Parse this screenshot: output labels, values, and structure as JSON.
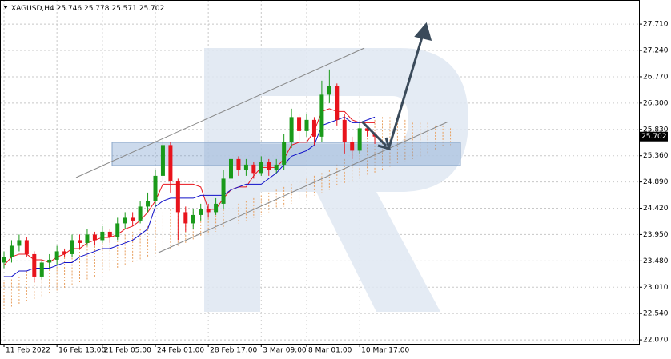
{
  "chart_data": {
    "type": "candlestick",
    "title": "XAGUSD,H4",
    "up_color": "#1a9a1a",
    "down_color": "#e8141c",
    "grid": true,
    "open": [
      23.45,
      23.55,
      23.75,
      23.85,
      23.6,
      23.2,
      23.45,
      23.5,
      23.65,
      23.6,
      23.85,
      23.8,
      23.95,
      23.85,
      24.0,
      23.9,
      24.15,
      24.25,
      24.2,
      24.45,
      24.55,
      25.0,
      25.55,
      24.9,
      24.35,
      24.15,
      24.3,
      24.4,
      24.35,
      24.5,
      24.95,
      25.3,
      25.1,
      25.2,
      25.05,
      25.25,
      25.1,
      25.2,
      25.6,
      26.05,
      25.8,
      26.0,
      25.7,
      26.45,
      26.6,
      26.0,
      25.6,
      25.45,
      25.85,
      25.746
    ],
    "high": [
      23.65,
      23.85,
      23.95,
      23.9,
      23.65,
      23.5,
      23.6,
      23.75,
      23.7,
      23.95,
      23.95,
      24.05,
      24.0,
      24.1,
      24.05,
      24.25,
      24.35,
      24.35,
      24.55,
      24.7,
      25.1,
      25.65,
      25.6,
      24.95,
      24.45,
      24.4,
      24.5,
      24.5,
      24.6,
      25.1,
      25.55,
      25.35,
      25.3,
      25.25,
      25.35,
      25.3,
      25.3,
      25.75,
      26.2,
      26.1,
      26.1,
      26.05,
      26.7,
      26.9,
      26.65,
      26.1,
      25.7,
      25.95,
      25.9,
      25.778
    ],
    "low": [
      23.35,
      23.45,
      23.65,
      23.55,
      23.1,
      23.15,
      23.35,
      23.4,
      23.55,
      23.55,
      23.7,
      23.75,
      23.75,
      23.8,
      23.8,
      23.85,
      24.05,
      24.1,
      24.15,
      24.35,
      24.45,
      24.9,
      24.7,
      23.85,
      24.0,
      24.05,
      24.2,
      24.25,
      24.3,
      24.4,
      24.85,
      25.0,
      25.0,
      24.95,
      25.0,
      25.0,
      25.05,
      25.1,
      25.5,
      25.6,
      25.7,
      25.55,
      25.6,
      26.3,
      25.9,
      25.4,
      25.3,
      25.4,
      25.7,
      25.571
    ],
    "close": [
      23.55,
      23.75,
      23.85,
      23.6,
      23.2,
      23.45,
      23.5,
      23.65,
      23.6,
      23.85,
      23.8,
      23.95,
      23.85,
      24.0,
      23.9,
      24.15,
      24.25,
      24.2,
      24.45,
      24.55,
      25.0,
      25.55,
      24.9,
      24.35,
      24.15,
      24.3,
      24.4,
      24.35,
      24.5,
      24.95,
      25.3,
      25.1,
      25.2,
      25.05,
      25.25,
      25.1,
      25.2,
      25.6,
      26.05,
      25.8,
      26.0,
      25.7,
      26.45,
      26.6,
      26.0,
      25.6,
      25.45,
      25.85,
      25.8,
      25.702
    ],
    "tenkan": {
      "color": "#e8141c",
      "values": [
        23.4,
        23.55,
        23.6,
        23.6,
        23.5,
        23.5,
        23.45,
        23.55,
        23.6,
        23.7,
        23.7,
        23.8,
        23.85,
        23.9,
        23.9,
        23.95,
        24.05,
        24.1,
        24.2,
        24.35,
        24.55,
        24.85,
        24.85,
        24.85,
        24.85,
        24.85,
        24.8,
        24.4,
        24.4,
        24.6,
        24.75,
        24.8,
        24.8,
        25.0,
        25.15,
        25.15,
        25.15,
        25.3,
        25.55,
        25.6,
        25.6,
        25.8,
        26.15,
        26.2,
        26.15,
        26.15,
        26.0,
        25.95,
        25.95,
        25.95
      ]
    },
    "kijun": {
      "color": "#1010c8",
      "values": [
        23.2,
        23.2,
        23.3,
        23.3,
        23.35,
        23.35,
        23.35,
        23.4,
        23.45,
        23.45,
        23.55,
        23.6,
        23.65,
        23.7,
        23.7,
        23.75,
        23.8,
        23.85,
        23.95,
        24.05,
        24.45,
        24.55,
        24.6,
        24.6,
        24.6,
        24.6,
        24.65,
        24.65,
        24.65,
        24.65,
        24.75,
        24.8,
        24.85,
        24.85,
        24.85,
        24.95,
        25.05,
        25.2,
        25.35,
        25.4,
        25.45,
        25.55,
        25.9,
        25.95,
        26.0,
        26.05,
        25.95,
        25.95,
        26.0,
        26.05
      ]
    },
    "cloud": {
      "color": "#e8a060",
      "span_a": [
        23.1,
        23.15,
        23.2,
        23.3,
        23.4,
        23.45,
        23.5,
        23.55,
        23.6,
        23.65,
        23.7,
        23.75,
        23.8,
        23.8,
        23.85,
        23.9,
        23.95,
        24.0,
        24.05,
        24.1,
        24.2,
        24.35,
        24.4,
        24.4,
        24.4,
        24.35,
        24.3,
        24.3,
        24.35,
        24.4,
        24.45,
        24.5,
        24.55,
        24.6,
        24.65,
        24.7,
        24.75,
        24.8,
        24.85,
        24.9,
        24.95,
        25.0,
        25.05,
        25.1,
        25.2,
        25.3,
        25.45,
        25.6,
        25.85,
        26.0,
        26.05,
        26.05,
        26.0,
        26.0,
        25.95,
        25.95,
        25.95,
        25.9,
        25.9,
        25.85
      ],
      "span_b": [
        22.6,
        22.65,
        22.7,
        22.75,
        22.8,
        22.85,
        22.9,
        22.95,
        23.0,
        23.05,
        23.1,
        23.15,
        23.2,
        23.25,
        23.3,
        23.35,
        23.4,
        23.45,
        23.5,
        23.55,
        23.6,
        23.65,
        23.7,
        23.75,
        23.8,
        23.85,
        23.9,
        23.95,
        24.0,
        24.05,
        24.1,
        24.15,
        24.2,
        24.25,
        24.3,
        24.35,
        24.4,
        24.45,
        24.5,
        24.55,
        24.6,
        24.65,
        24.7,
        24.75,
        24.8,
        24.85,
        24.9,
        24.95,
        25.0,
        25.05,
        25.1,
        25.15,
        25.2,
        25.25,
        25.3,
        25.35,
        25.4,
        25.45,
        25.5,
        25.55
      ]
    },
    "ylim": [
      22.0,
      28.14
    ],
    "yticks": [
      {
        "value": 27.71,
        "label": "27.710"
      },
      {
        "value": 27.24,
        "label": "27.240"
      },
      {
        "value": 26.77,
        "label": "26.770"
      },
      {
        "value": 26.3,
        "label": "26.300"
      },
      {
        "value": 25.83,
        "label": "25.830"
      },
      {
        "value": 25.36,
        "label": "25.360"
      },
      {
        "value": 24.89,
        "label": "24.890"
      },
      {
        "value": 24.42,
        "label": "24.420"
      },
      {
        "value": 23.95,
        "label": "23.950"
      },
      {
        "value": 23.48,
        "label": "23.480"
      },
      {
        "value": 23.01,
        "label": "23.010"
      },
      {
        "value": 22.54,
        "label": "22.540"
      },
      {
        "value": 22.07,
        "label": "22.070"
      }
    ],
    "xticks": [
      {
        "value": 0,
        "label": "11 Feb 2022"
      },
      {
        "value": 7,
        "label": "16 Feb 13:00"
      },
      {
        "value": 13,
        "label": "21 Feb 05:00"
      },
      {
        "value": 20,
        "label": "24 Feb 01:00"
      },
      {
        "value": 27,
        "label": "28 Feb 17:00"
      },
      {
        "value": 34,
        "label": "3 Mar 09:00"
      },
      {
        "value": 40,
        "label": "8 Mar 01:00"
      },
      {
        "value": 47,
        "label": "10 Mar 17:00"
      }
    ]
  }
}
